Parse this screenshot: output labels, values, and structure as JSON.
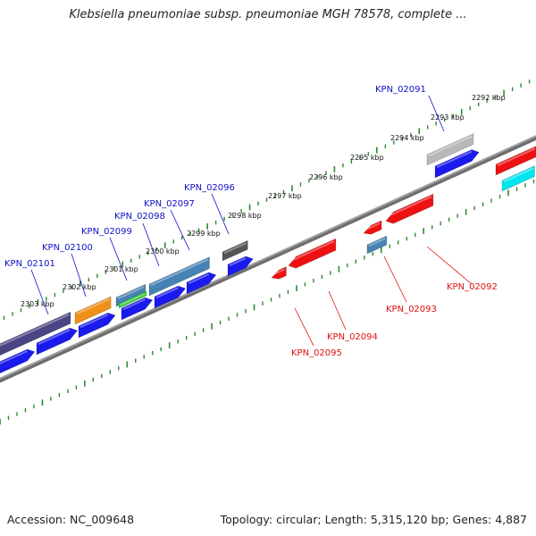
{
  "title": "Klebsiella pneumoniae subsp. pneumoniae MGH 78578, complete ...",
  "accession_text": "Accession: NC_009648",
  "summary_text": "Topology: circular; Length: 5,315,120 bp; Genes: 4,887",
  "colors": {
    "backbone": "#808080",
    "tick_mark": "#2e8b2e",
    "forward_label": "#1010c8",
    "reverse_label": "#dd1111",
    "cds_forward": "#1a1aee",
    "cds_reverse": "#ee1111"
  },
  "ruler": {
    "unit": "kbp",
    "ticks": [
      "2292 kbp",
      "2293 kbp",
      "2294 kbp",
      "2295 kbp",
      "2296 kbp",
      "2297 kbp",
      "2298 kbp",
      "2299 kbp",
      "2300 kbp",
      "2301 kbp",
      "2302 kbp",
      "2303 kbp"
    ]
  },
  "genes_forward": [
    {
      "id": "KPN_02091",
      "label": "KPN_02091"
    },
    {
      "id": "KPN_02096",
      "label": "KPN_02096"
    },
    {
      "id": "KPN_02097",
      "label": "KPN_02097"
    },
    {
      "id": "KPN_02098",
      "label": "KPN_02098"
    },
    {
      "id": "KPN_02099",
      "label": "KPN_02099"
    },
    {
      "id": "KPN_02100",
      "label": "KPN_02100"
    },
    {
      "id": "KPN_02101",
      "label": "KPN_02101"
    }
  ],
  "genes_reverse": [
    {
      "id": "KPN_02092",
      "label": "KPN_02092"
    },
    {
      "id": "KPN_02093",
      "label": "KPN_02093"
    },
    {
      "id": "KPN_02094",
      "label": "KPN_02094"
    },
    {
      "id": "KPN_02095",
      "label": "KPN_02095"
    }
  ],
  "feature_colors": {
    "dark_purple": "#4a4482",
    "orange": "#f0901a",
    "steel_blue": "#4682b4",
    "green": "#33cc33",
    "dark_gray": "#555555",
    "light_gray": "#b8b8b8",
    "cyan": "#00e5ee"
  }
}
